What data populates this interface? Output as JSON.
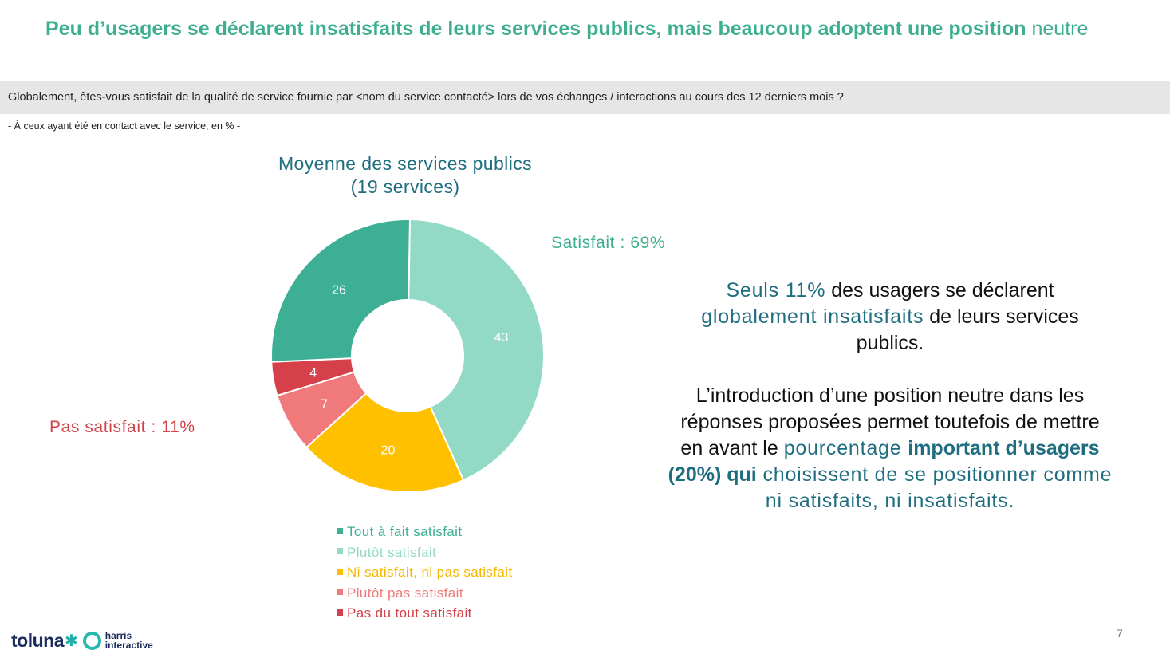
{
  "title": {
    "bold": "Peu d’usagers se déclarent insatisfaits de leurs services publics, mais beaucoup adoptent une position",
    "normal": "neutre"
  },
  "question": "Globalement, êtes-vous satisfait de la qualité de service fournie par <nom du service contacté> lors de vos échanges / interactions au cours des 12 derniers mois ?",
  "base": "- À ceux ayant été en contact avec le service, en % -",
  "chart_data": {
    "type": "pie",
    "donut": true,
    "title": "Moyenne des services publics",
    "subtitle": "(19 services)",
    "categories": [
      "Tout à fait satisfait",
      "Plutôt satisfait",
      "Ni satisfait, ni pas satisfait",
      "Plutôt pas satisfait",
      "Pas du tout satisfait"
    ],
    "values": [
      26,
      43,
      20,
      7,
      4
    ],
    "colors": [
      "#3daf94",
      "#92d9c6",
      "#ffc000",
      "#f07a7b",
      "#d5404a"
    ],
    "legend_text_colors": [
      "#3daf94",
      "#92d9c6",
      "#f5b800",
      "#f07a7b",
      "#d5404a"
    ],
    "label_color": "#ffffff",
    "legend_position": "bottom",
    "annotations": {
      "satisfied": "Satisfait : 69%",
      "unsatisfied": "Pas satisfait : 11%"
    }
  },
  "commentary": {
    "p1_a": "Seuls 11%",
    "p1_b": " des usagers se déclarent ",
    "p1_c": "globalement insatisfaits",
    "p1_d": " de leurs services publics.",
    "p2_a": "L’introduction d’une position neutre dans les réponses proposées permet toutefois de mettre en avant le ",
    "p2_b": "pourcentage ",
    "p2_c": "important d’usagers (20%) qui",
    "p2_d": " choisissent de se positionner comme ni satisfaits, ni insatisfaits."
  },
  "logo": {
    "brand": "toluna",
    "partner_line1": "harris",
    "partner_line2": "interactive"
  },
  "page_number": "7"
}
